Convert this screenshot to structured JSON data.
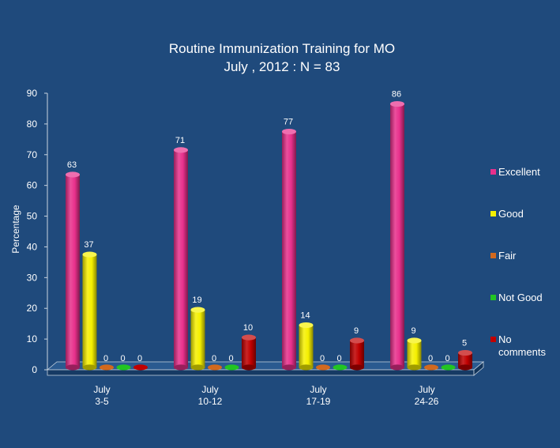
{
  "chart_data": {
    "type": "bar",
    "title": "Routine Immunization Training for MO",
    "subtitle": "July , 2012 : N = 83",
    "ylabel": "Percentage",
    "xlabel": "",
    "ylim": [
      0,
      90
    ],
    "yticks": [
      0,
      10,
      20,
      30,
      40,
      50,
      60,
      70,
      80,
      90
    ],
    "grid": false,
    "legend_position": "right",
    "categories": [
      {
        "line1": "July",
        "line2": "3-5"
      },
      {
        "line1": "July",
        "line2": "10-12"
      },
      {
        "line1": "July",
        "line2": "17-19"
      },
      {
        "line1": "July",
        "line2": "24-26"
      }
    ],
    "series": [
      {
        "name": "Excellent",
        "name_lines": [
          "Excellent"
        ],
        "color": "#e8308c",
        "values": [
          63,
          71,
          77,
          86
        ]
      },
      {
        "name": "Good",
        "name_lines": [
          "Good"
        ],
        "color": "#f5f000",
        "values": [
          37,
          19,
          14,
          9
        ]
      },
      {
        "name": "Fair",
        "name_lines": [
          "Fair"
        ],
        "color": "#d2691e",
        "values": [
          0,
          0,
          0,
          0
        ]
      },
      {
        "name": "Not Good",
        "name_lines": [
          "Not Good"
        ],
        "color": "#22c522",
        "values": [
          0,
          0,
          0,
          0
        ]
      },
      {
        "name": "No comments",
        "name_lines": [
          "No",
          "comments"
        ],
        "color": "#c00000",
        "values": [
          0,
          10,
          9,
          5
        ]
      }
    ]
  }
}
